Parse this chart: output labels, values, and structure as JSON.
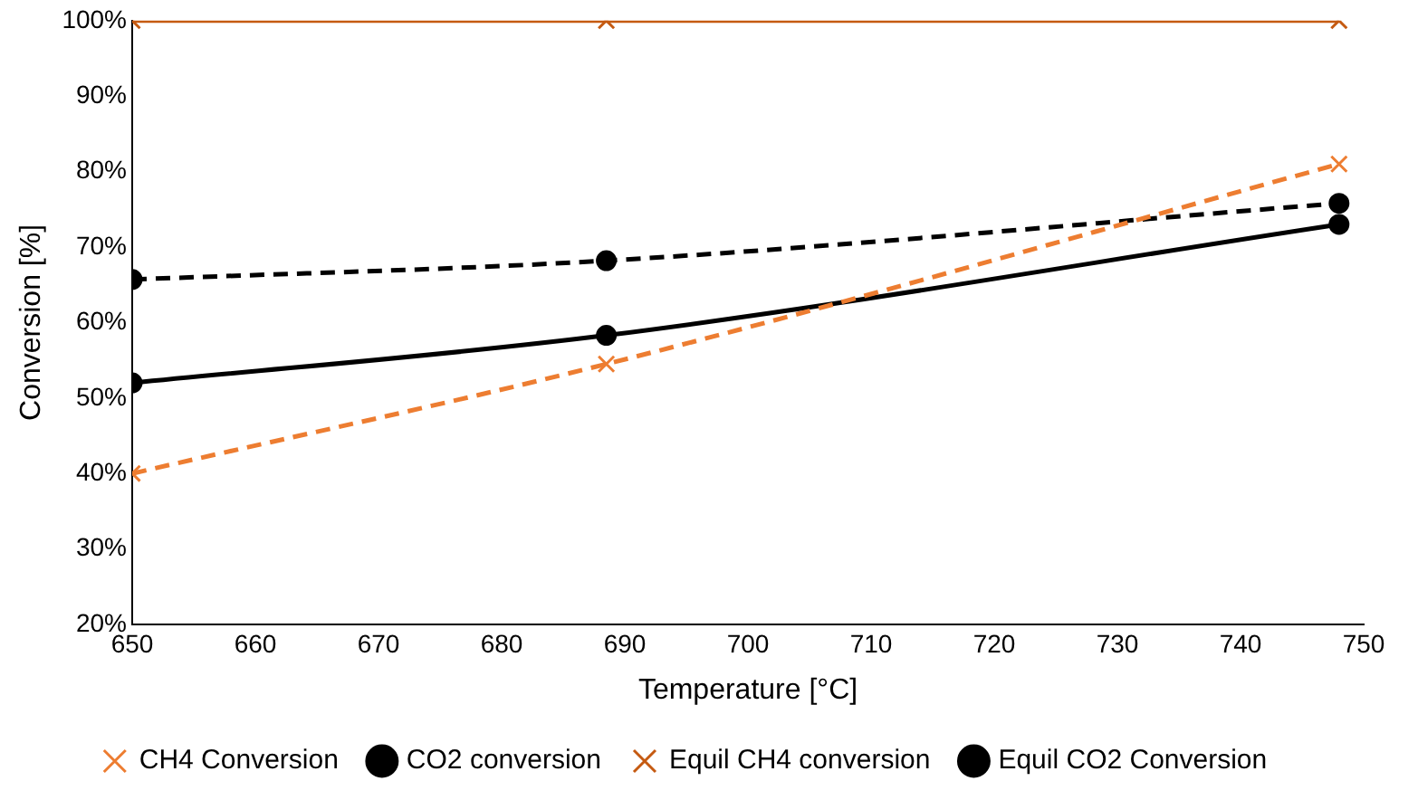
{
  "chart_data": {
    "type": "line",
    "xlabel": "Temperature [°C]",
    "ylabel": "Conversion [%]",
    "x": [
      650,
      688.5,
      748
    ],
    "xlim": [
      650,
      750
    ],
    "xticks": [
      650,
      660,
      670,
      680,
      690,
      700,
      710,
      720,
      730,
      740,
      750
    ],
    "ylim": [
      20,
      100
    ],
    "yticks": [
      {
        "value": 20,
        "label": "20%"
      },
      {
        "value": 30,
        "label": "30%"
      },
      {
        "value": 40,
        "label": "40%"
      },
      {
        "value": 50,
        "label": "50%"
      },
      {
        "value": 60,
        "label": "60%"
      },
      {
        "value": 70,
        "label": "70%"
      },
      {
        "value": 80,
        "label": "80%"
      },
      {
        "value": 90,
        "label": "90%"
      },
      {
        "value": 100,
        "label": "100%"
      }
    ],
    "grid": false,
    "legend": "bottom",
    "series": [
      {
        "name": "CH4 Conversion",
        "color": "#ed7d31",
        "values": [
          40,
          54.5,
          81
        ],
        "marker": "cross",
        "line_style": "dashed"
      },
      {
        "name": "CO2 conversion",
        "color": "#000000",
        "values": [
          65.7,
          68.2,
          75.8
        ],
        "marker": "circle",
        "line_style": "dashed"
      },
      {
        "name": "Equil CH4 conversion",
        "color": "#c55a11",
        "values": [
          100,
          100,
          100
        ],
        "marker": "cross",
        "line_style": "solid"
      },
      {
        "name": "Equil CO2 Conversion",
        "color": "#000000",
        "values": [
          52,
          58.3,
          73
        ],
        "marker": "circle",
        "line_style": "solid"
      }
    ]
  }
}
